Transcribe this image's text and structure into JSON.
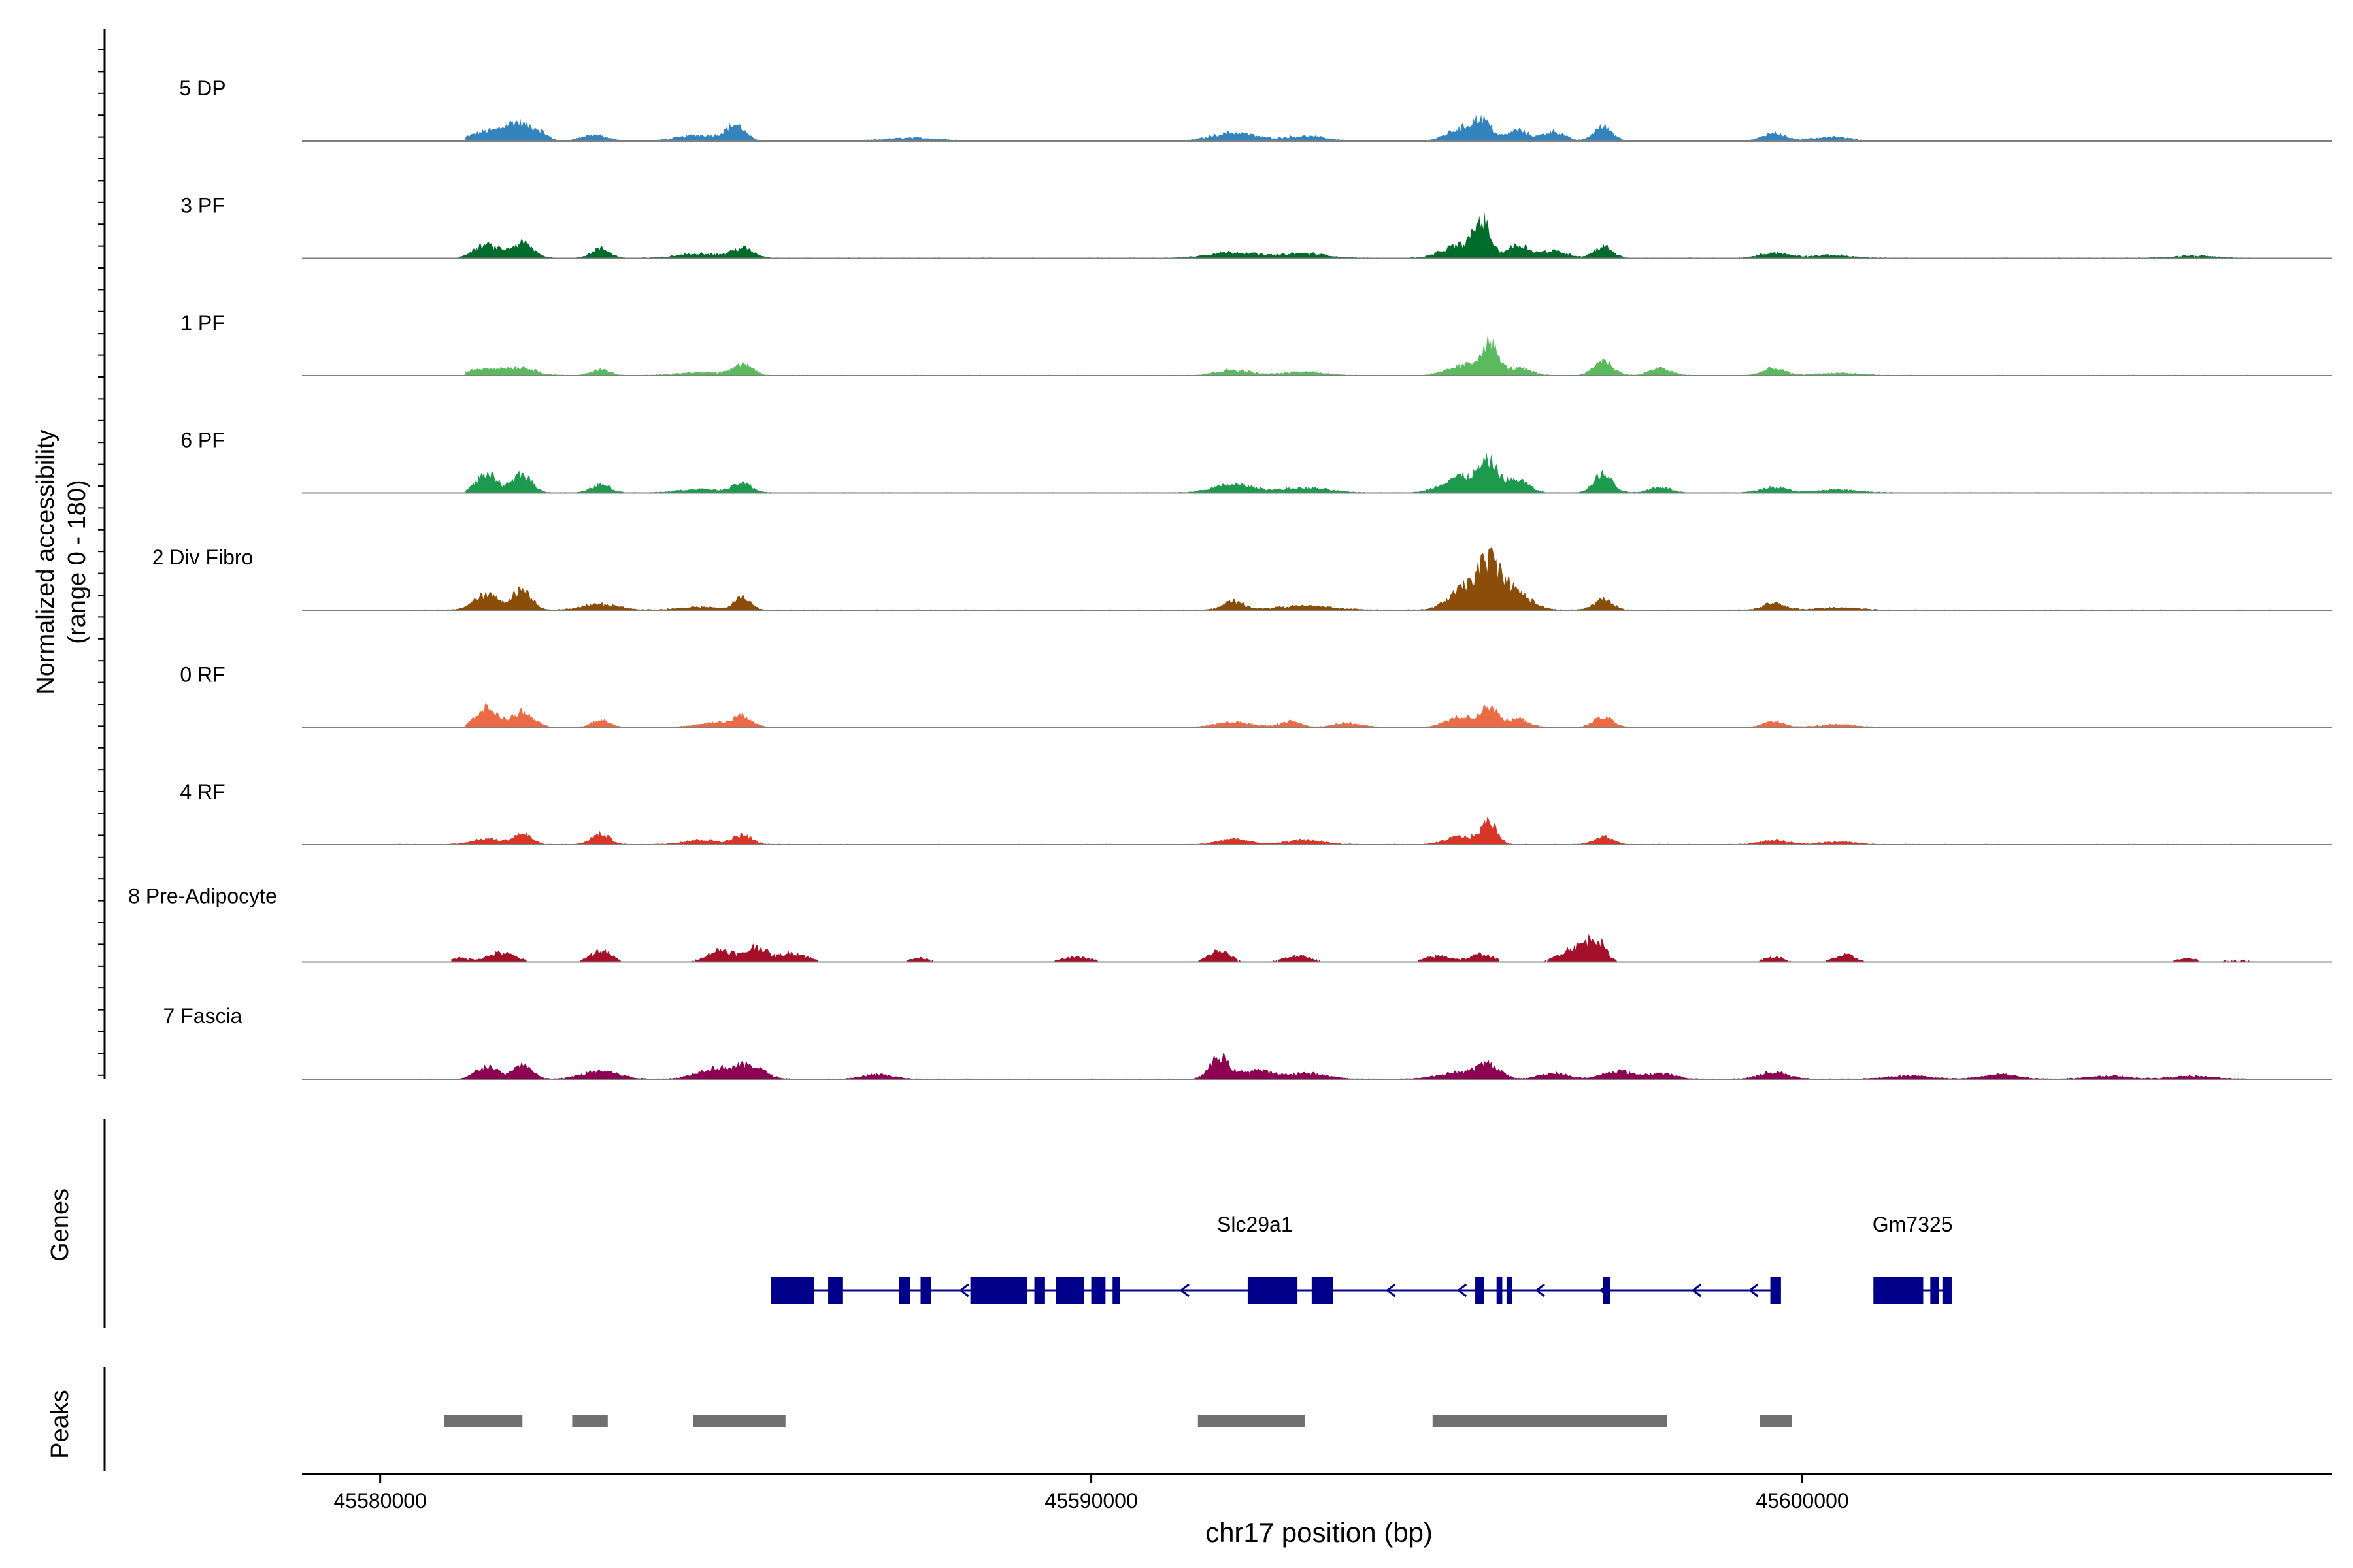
{
  "chart_data": {
    "type": "area",
    "title": "",
    "y_axis": {
      "label_line1": "Normalized accessibility",
      "label_line2": "(range 0 - 180)",
      "ylim": [
        0,
        180
      ]
    },
    "x_axis": {
      "label": "chr17 position (bp)",
      "xlim": [
        45578900,
        45607450
      ],
      "ticks": [
        {
          "value": 45580000,
          "label": "45580000"
        },
        {
          "value": 45590000,
          "label": "45590000"
        },
        {
          "value": 45600000,
          "label": "45600000"
        }
      ]
    },
    "tracks": [
      {
        "name": "5 DP",
        "color": "#3383BE",
        "extent": [
          45581200,
          45605800
        ],
        "peaks": [
          [
            45581500,
            16,
            220
          ],
          [
            45581900,
            28,
            150
          ],
          [
            45582200,
            18,
            130
          ],
          [
            45583000,
            10,
            180
          ],
          [
            45585000,
            25,
            130
          ],
          [
            45584500,
            10,
            300
          ],
          [
            45587500,
            5,
            400
          ],
          [
            45592000,
            14,
            300
          ],
          [
            45593000,
            8,
            300
          ],
          [
            45595200,
            20,
            200
          ],
          [
            45595500,
            32,
            130
          ],
          [
            45596000,
            18,
            150
          ],
          [
            45596500,
            16,
            150
          ],
          [
            45597200,
            24,
            130
          ],
          [
            45599600,
            14,
            150
          ],
          [
            45600400,
            7,
            250
          ]
        ]
      },
      {
        "name": "3 PF",
        "color": "#006C2C",
        "extent": [
          45581100,
          45606500
        ],
        "peaks": [
          [
            45581500,
            22,
            180
          ],
          [
            45582000,
            25,
            150
          ],
          [
            45583100,
            16,
            130
          ],
          [
            45585100,
            16,
            150
          ],
          [
            45584500,
            8,
            300
          ],
          [
            45592000,
            10,
            350
          ],
          [
            45593000,
            8,
            300
          ],
          [
            45595200,
            22,
            250
          ],
          [
            45595500,
            55,
            110
          ],
          [
            45596000,
            22,
            150
          ],
          [
            45596500,
            12,
            200
          ],
          [
            45597200,
            20,
            130
          ],
          [
            45599600,
            9,
            200
          ],
          [
            45600400,
            5,
            300
          ],
          [
            45605500,
            4,
            300
          ]
        ]
      },
      {
        "name": "1 PF",
        "color": "#5CBA5E",
        "extent": [
          45581200,
          45606500
        ],
        "peaks": [
          [
            45581500,
            12,
            250
          ],
          [
            45582000,
            12,
            200
          ],
          [
            45583100,
            10,
            130
          ],
          [
            45585100,
            20,
            130
          ],
          [
            45584500,
            5,
            300
          ],
          [
            45592000,
            9,
            250
          ],
          [
            45593000,
            6,
            300
          ],
          [
            45595300,
            18,
            250
          ],
          [
            45595600,
            48,
            110
          ],
          [
            45596000,
            12,
            180
          ],
          [
            45597200,
            26,
            130
          ],
          [
            45598000,
            12,
            150
          ],
          [
            45599600,
            12,
            150
          ],
          [
            45600500,
            4,
            300
          ]
        ]
      },
      {
        "name": "6 PF",
        "color": "#1E9A4F",
        "extent": [
          45581200,
          45606500
        ],
        "peaks": [
          [
            45581500,
            32,
            150
          ],
          [
            45582000,
            32,
            130
          ],
          [
            45583100,
            14,
            130
          ],
          [
            45585100,
            16,
            130
          ],
          [
            45584500,
            6,
            300
          ],
          [
            45592000,
            14,
            280
          ],
          [
            45593000,
            8,
            350
          ],
          [
            45595200,
            28,
            250
          ],
          [
            45595600,
            46,
            130
          ],
          [
            45596000,
            22,
            150
          ],
          [
            45597200,
            32,
            130
          ],
          [
            45598000,
            10,
            150
          ],
          [
            45599600,
            10,
            180
          ],
          [
            45600500,
            5,
            300
          ]
        ]
      },
      {
        "name": "2 Div Fibro",
        "color": "#8B4D0A",
        "extent": [
          45580200,
          45606600
        ],
        "peaks": [
          [
            45581500,
            26,
            180
          ],
          [
            45582000,
            35,
            130
          ],
          [
            45583100,
            10,
            250
          ],
          [
            45585100,
            22,
            110
          ],
          [
            45584500,
            5,
            300
          ],
          [
            45592000,
            14,
            150
          ],
          [
            45593000,
            7,
            400
          ],
          [
            45595200,
            30,
            200
          ],
          [
            45595600,
            80,
            180
          ],
          [
            45596000,
            26,
            200
          ],
          [
            45597200,
            18,
            130
          ],
          [
            45599600,
            12,
            150
          ],
          [
            45600500,
            4,
            300
          ]
        ]
      },
      {
        "name": "0 RF",
        "color": "#ED6B44",
        "extent": [
          45581200,
          45606600
        ],
        "peaks": [
          [
            45581500,
            32,
            150
          ],
          [
            45582000,
            26,
            150
          ],
          [
            45583100,
            12,
            130
          ],
          [
            45585100,
            18,
            130
          ],
          [
            45584700,
            8,
            250
          ],
          [
            45592000,
            9,
            250
          ],
          [
            45592800,
            10,
            150
          ],
          [
            45593600,
            7,
            200
          ],
          [
            45595200,
            18,
            200
          ],
          [
            45595600,
            36,
            110
          ],
          [
            45596000,
            14,
            150
          ],
          [
            45597200,
            18,
            130
          ],
          [
            45599600,
            10,
            150
          ],
          [
            45600500,
            5,
            250
          ]
        ]
      },
      {
        "name": "4 RF",
        "color": "#DA3628",
        "extent": [
          45580200,
          45606600
        ],
        "peaks": [
          [
            45581500,
            10,
            200
          ],
          [
            45582000,
            18,
            130
          ],
          [
            45583100,
            18,
            130
          ],
          [
            45585100,
            16,
            130
          ],
          [
            45584500,
            8,
            250
          ],
          [
            45592000,
            10,
            200
          ],
          [
            45593000,
            8,
            250
          ],
          [
            45595200,
            14,
            200
          ],
          [
            45595600,
            38,
            110
          ],
          [
            45597200,
            14,
            130
          ],
          [
            45599600,
            7,
            200
          ],
          [
            45600500,
            5,
            250
          ]
        ]
      },
      {
        "name": "8 Pre-Adipocyte",
        "color": "#A50F29",
        "extent": [
          45581000,
          45606800
        ],
        "peaks": [
          [
            45581100,
            8,
            150
          ],
          [
            45581700,
            18,
            200
          ],
          [
            45583100,
            22,
            150
          ],
          [
            45584800,
            24,
            200
          ],
          [
            45585300,
            30,
            130
          ],
          [
            45585800,
            18,
            200
          ],
          [
            45587600,
            8,
            150
          ],
          [
            45589800,
            10,
            200
          ],
          [
            45591800,
            22,
            150
          ],
          [
            45592900,
            12,
            200
          ],
          [
            45594900,
            12,
            200
          ],
          [
            45595500,
            16,
            150
          ],
          [
            45596800,
            28,
            200
          ],
          [
            45597100,
            38,
            130
          ],
          [
            45599600,
            10,
            150
          ],
          [
            45600600,
            14,
            150
          ],
          [
            45605400,
            7,
            150
          ],
          [
            45606100,
            4,
            250
          ]
        ]
      },
      {
        "name": "7 Fascia",
        "color": "#8E0152",
        "extent": [
          45580200,
          45606300
        ],
        "peaks": [
          [
            45581500,
            22,
            150
          ],
          [
            45582000,
            25,
            130
          ],
          [
            45583100,
            14,
            250
          ],
          [
            45584700,
            18,
            250
          ],
          [
            45585200,
            22,
            200
          ],
          [
            45587000,
            8,
            200
          ],
          [
            45591800,
            38,
            130
          ],
          [
            45592300,
            15,
            200
          ],
          [
            45593000,
            10,
            300
          ],
          [
            45595200,
            12,
            300
          ],
          [
            45595600,
            22,
            150
          ],
          [
            45596500,
            10,
            200
          ],
          [
            45597400,
            14,
            200
          ],
          [
            45598000,
            10,
            200
          ],
          [
            45599600,
            12,
            200
          ],
          [
            45601500,
            6,
            300
          ],
          [
            45602800,
            8,
            250
          ],
          [
            45604300,
            5,
            300
          ],
          [
            45605500,
            5,
            300
          ]
        ]
      }
    ],
    "genes_label": "Genes",
    "genes": [
      {
        "name": "Slc29a1",
        "strand": "-",
        "label_pos": 45592300,
        "start": 45585500,
        "end": 45599700,
        "exons": [
          [
            45585500,
            45586100
          ],
          [
            45586300,
            45586500
          ],
          [
            45587300,
            45587450
          ],
          [
            45587600,
            45587750
          ],
          [
            45588300,
            45589100
          ],
          [
            45589200,
            45589350
          ],
          [
            45589500,
            45589900
          ],
          [
            45590000,
            45590200
          ],
          [
            45590300,
            45590400
          ],
          [
            45592200,
            45592900
          ],
          [
            45593100,
            45593400
          ],
          [
            45595400,
            45595520
          ],
          [
            45595700,
            45595780
          ],
          [
            45595840,
            45595920
          ],
          [
            45597200,
            45597300
          ],
          [
            45599550,
            45599700
          ]
        ],
        "arrows": [
          45588200,
          45591300,
          45592800,
          45594200,
          45595200,
          45596300,
          45597200,
          45598500,
          45599300
        ]
      },
      {
        "name": "Gm7325",
        "strand": "+",
        "label_pos": 45601550,
        "start": 45601000,
        "end": 45602100,
        "exons": [
          [
            45601000,
            45601700
          ],
          [
            45601800,
            45601920
          ],
          [
            45601970,
            45602100
          ]
        ],
        "arrows": []
      }
    ],
    "peaks_label": "Peaks",
    "peak_regions": [
      [
        45580900,
        45582000
      ],
      [
        45582700,
        45583200
      ],
      [
        45584400,
        45585700
      ],
      [
        45591500,
        45593000
      ],
      [
        45594800,
        45598100
      ],
      [
        45599400,
        45599850
      ]
    ]
  }
}
